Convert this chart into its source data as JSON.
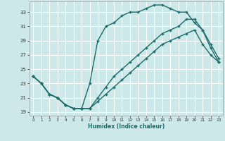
{
  "xlabel": "Humidex (Indice chaleur)",
  "bg_color": "#cce8e8",
  "line_color": "#1a6b6b",
  "grid_color": "#ffffff",
  "xlim": [
    -0.5,
    23.5
  ],
  "ylim": [
    18.5,
    34.5
  ],
  "xticks": [
    0,
    1,
    2,
    3,
    4,
    5,
    6,
    7,
    8,
    9,
    10,
    11,
    12,
    13,
    14,
    15,
    16,
    17,
    18,
    19,
    20,
    21,
    22,
    23
  ],
  "yticks": [
    19,
    21,
    23,
    25,
    27,
    29,
    31,
    33
  ],
  "line1_x": [
    0,
    1,
    2,
    3,
    4,
    5,
    6,
    7,
    8,
    9,
    10,
    11,
    12,
    13,
    14,
    15,
    16,
    17,
    18,
    19,
    20,
    21,
    22,
    23
  ],
  "line1_y": [
    24,
    23,
    21.5,
    21,
    20,
    19.5,
    19.5,
    23,
    29,
    31,
    31.5,
    32.5,
    33,
    33,
    33.5,
    34,
    34,
    33.5,
    33,
    33,
    31.5,
    30.5,
    28,
    26
  ],
  "line2_x": [
    0,
    1,
    2,
    3,
    4,
    5,
    6,
    7,
    8,
    9,
    10,
    11,
    12,
    13,
    14,
    15,
    16,
    17,
    18,
    19,
    20,
    21,
    22,
    23
  ],
  "line2_y": [
    24,
    23,
    21.5,
    21,
    20,
    19.5,
    19.5,
    19.5,
    21,
    22.5,
    24,
    25,
    26,
    27,
    28,
    29,
    30,
    30.5,
    31,
    32,
    32,
    30.5,
    28.5,
    26.5
  ],
  "line3_x": [
    0,
    1,
    2,
    3,
    4,
    5,
    6,
    7,
    8,
    9,
    10,
    11,
    12,
    13,
    14,
    15,
    16,
    17,
    18,
    19,
    20,
    21,
    22,
    23
  ],
  "line3_y": [
    24,
    23,
    21.5,
    21,
    20,
    19.5,
    19.5,
    19.5,
    20.5,
    21.5,
    22.5,
    23.5,
    24.5,
    25.5,
    26.5,
    27.5,
    28.5,
    29,
    29.5,
    30,
    30.5,
    28.5,
    27,
    26
  ]
}
